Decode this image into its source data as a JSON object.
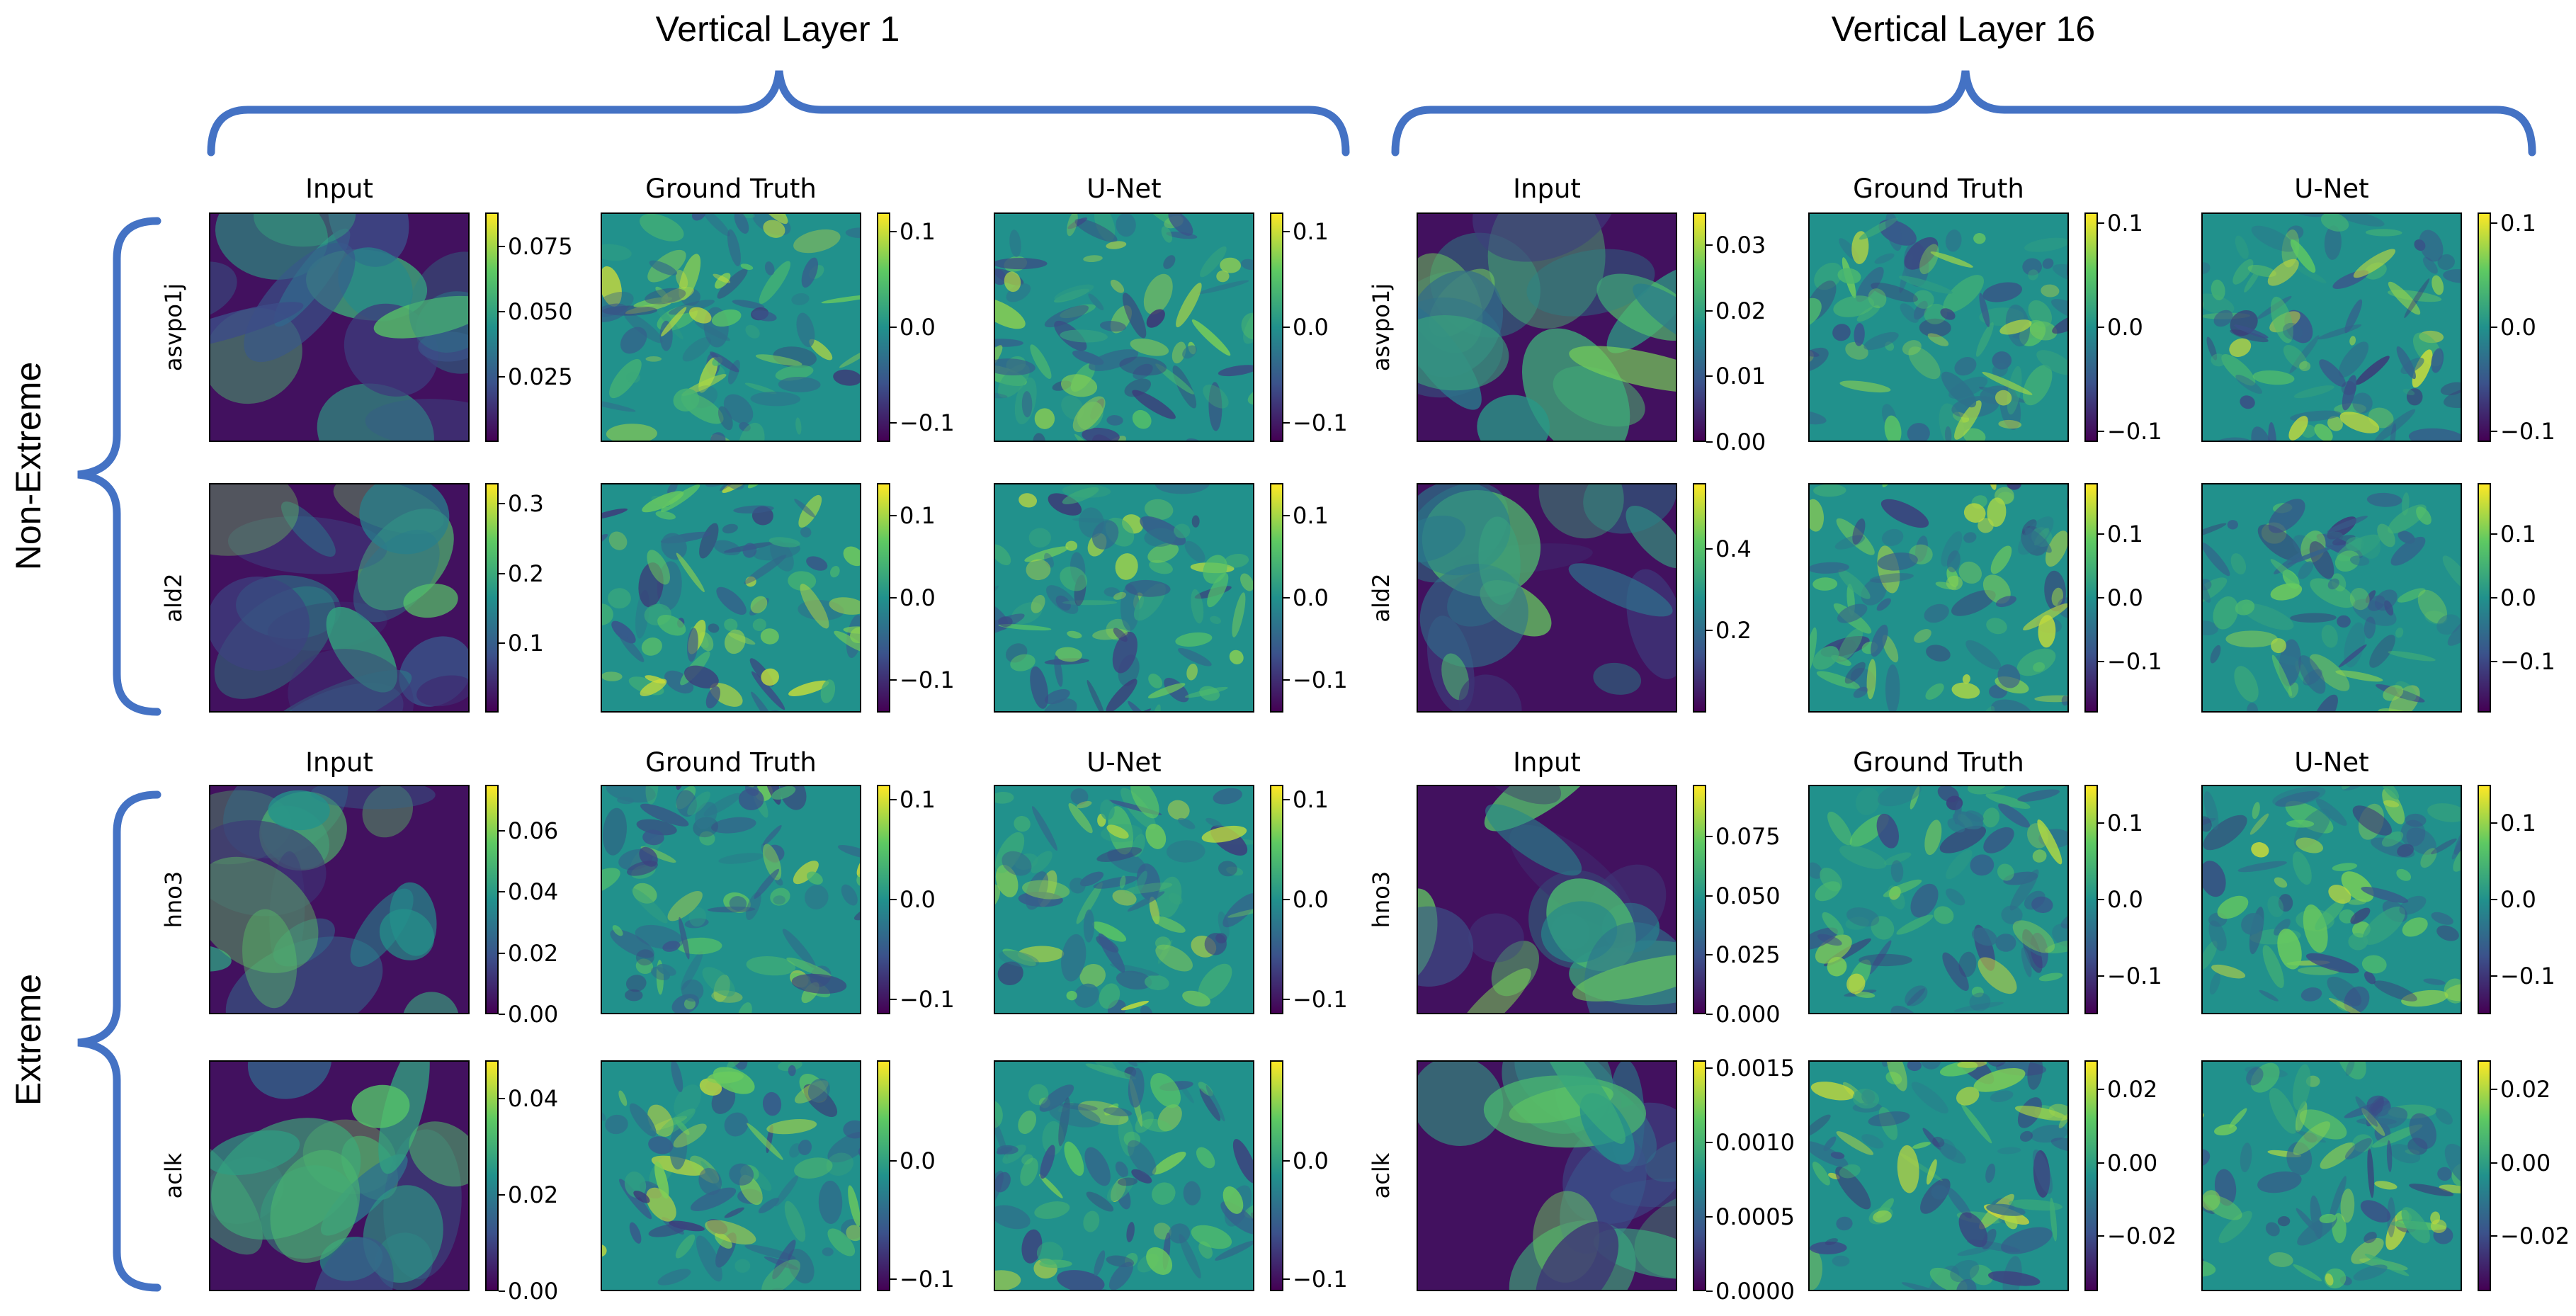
{
  "chart_data": {
    "type": "heatmap",
    "layer_titles": [
      "Vertical Layer 1",
      "Vertical Layer 16"
    ],
    "group_labels": [
      "Non-Extreme",
      "Extreme"
    ],
    "column_titles": [
      "Input",
      "Ground Truth",
      "U-Net"
    ],
    "colormap": "viridis",
    "colors": {
      "brace": "#4472c4",
      "low": "#440154",
      "mid": "#21918c",
      "high": "#fde725"
    },
    "rows": [
      {
        "group": "Non-Extreme",
        "variable": "asvpo1j",
        "layers": [
          {
            "layer": "Vertical Layer 1",
            "input": {
              "ticks": [
                "0.025",
                "0.050",
                "0.075"
              ],
              "range": [
                0.0,
                0.088
              ]
            },
            "ground_truth": {
              "ticks": [
                "−0.1",
                "0.0",
                "0.1"
              ],
              "range": [
                -0.12,
                0.12
              ]
            },
            "unet": {
              "ticks": [
                "−0.1",
                "0.0",
                "0.1"
              ],
              "range": [
                -0.12,
                0.12
              ]
            }
          },
          {
            "layer": "Vertical Layer 16",
            "input": {
              "ticks": [
                "0.00",
                "0.01",
                "0.02",
                "0.03"
              ],
              "range": [
                0.0,
                0.035
              ]
            },
            "ground_truth": {
              "ticks": [
                "−0.1",
                "0.0",
                "0.1"
              ],
              "range": [
                -0.11,
                0.11
              ]
            },
            "unet": {
              "ticks": [
                "−0.1",
                "0.0",
                "0.1"
              ],
              "range": [
                -0.11,
                0.11
              ]
            }
          }
        ]
      },
      {
        "group": "Non-Extreme",
        "variable": "ald2",
        "layers": [
          {
            "layer": "Vertical Layer 1",
            "input": {
              "ticks": [
                "0.1",
                "0.2",
                "0.3"
              ],
              "range": [
                0.0,
                0.33
              ]
            },
            "ground_truth": {
              "ticks": [
                "−0.1",
                "0.0",
                "0.1"
              ],
              "range": [
                -0.14,
                0.14
              ]
            },
            "unet": {
              "ticks": [
                "−0.1",
                "0.0",
                "0.1"
              ],
              "range": [
                -0.14,
                0.14
              ]
            }
          },
          {
            "layer": "Vertical Layer 16",
            "input": {
              "ticks": [
                "0.2",
                "0.4"
              ],
              "range": [
                0.0,
                0.56
              ]
            },
            "ground_truth": {
              "ticks": [
                "−0.1",
                "0.0",
                "0.1"
              ],
              "range": [
                -0.18,
                0.18
              ]
            },
            "unet": {
              "ticks": [
                "−0.1",
                "0.0",
                "0.1"
              ],
              "range": [
                -0.18,
                0.18
              ]
            }
          }
        ]
      },
      {
        "group": "Extreme",
        "variable": "hno3",
        "layers": [
          {
            "layer": "Vertical Layer 1",
            "input": {
              "ticks": [
                "0.00",
                "0.02",
                "0.04",
                "0.06"
              ],
              "range": [
                0.0,
                0.075
              ]
            },
            "ground_truth": {
              "ticks": [
                "−0.1",
                "0.0",
                "0.1"
              ],
              "range": [
                -0.115,
                0.115
              ]
            },
            "unet": {
              "ticks": [
                "−0.1",
                "0.0",
                "0.1"
              ],
              "range": [
                -0.115,
                0.115
              ]
            }
          },
          {
            "layer": "Vertical Layer 16",
            "input": {
              "ticks": [
                "0.000",
                "0.025",
                "0.050",
                "0.075"
              ],
              "range": [
                0.0,
                0.097
              ]
            },
            "ground_truth": {
              "ticks": [
                "−0.1",
                "0.0",
                "0.1"
              ],
              "range": [
                -0.15,
                0.15
              ]
            },
            "unet": {
              "ticks": [
                "−0.1",
                "0.0",
                "0.1"
              ],
              "range": [
                -0.15,
                0.15
              ]
            }
          }
        ]
      },
      {
        "group": "Extreme",
        "variable": "aclk",
        "layers": [
          {
            "layer": "Vertical Layer 1",
            "input": {
              "ticks": [
                "0.00",
                "0.02",
                "0.04"
              ],
              "range": [
                0.0,
                0.048
              ]
            },
            "ground_truth": {
              "ticks": [
                "−0.1",
                "0.0"
              ],
              "range": [
                -0.11,
                0.085
              ]
            },
            "unet": {
              "ticks": [
                "−0.1",
                "0.0"
              ],
              "range": [
                -0.11,
                0.085
              ]
            }
          },
          {
            "layer": "Vertical Layer 16",
            "input": {
              "ticks": [
                "0.0000",
                "0.0005",
                "0.0010",
                "0.0015"
              ],
              "range": [
                0.0,
                0.00155
              ]
            },
            "ground_truth": {
              "ticks": [
                "−0.02",
                "0.00",
                "0.02"
              ],
              "range": [
                -0.035,
                0.028
              ]
            },
            "unet": {
              "ticks": [
                "−0.02",
                "0.00",
                "0.02"
              ],
              "range": [
                -0.035,
                0.028
              ]
            }
          }
        ]
      }
    ]
  }
}
